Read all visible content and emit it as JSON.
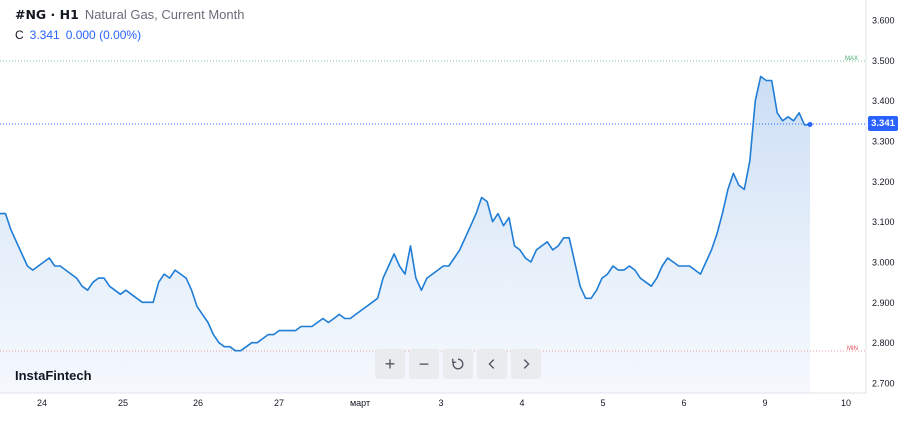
{
  "legend": {
    "symbol": "#NG · H1",
    "name": "Natural Gas, Current Month",
    "close_label": "C",
    "close_value": "3.341",
    "change_text": "0.000 (0.00%)"
  },
  "brand": "InstaFintech",
  "price_tag": "3.341",
  "max_label": "MAX",
  "min_label": "MIN",
  "toolbar": {
    "zoom_in": "+",
    "zoom_out": "−"
  },
  "colors": {
    "line": "#1f7dd6",
    "area_top": "#c8dcf4",
    "last_price": "#2962ff",
    "max_line": "#3fa86a",
    "min_line": "#e0505a"
  },
  "chart_data": {
    "type": "area",
    "title": "Natural Gas, Current Month",
    "xlabel": "",
    "ylabel": "",
    "ylim": [
      2.7,
      3.6
    ],
    "y_ticks": [
      "3.600",
      "3.500",
      "3.400",
      "3.300",
      "3.200",
      "3.100",
      "3.000",
      "2.900",
      "2.800",
      "2.700"
    ],
    "x_ticks": [
      "24",
      "25",
      "26",
      "27",
      "март",
      "3",
      "4",
      "5",
      "6",
      "9",
      "10"
    ],
    "grid": false,
    "last_value": 3.341,
    "max_value": 3.496,
    "min_value": 2.777,
    "series": [
      {
        "values": [
          3.12,
          3.12,
          3.08,
          3.05,
          3.02,
          2.99,
          2.98,
          2.99,
          3.0,
          3.01,
          2.99,
          2.99,
          2.98,
          2.97,
          2.96,
          2.94,
          2.93,
          2.95,
          2.96,
          2.96,
          2.94,
          2.93,
          2.92,
          2.93,
          2.92,
          2.91,
          2.9,
          2.9,
          2.9,
          2.95,
          2.97,
          2.96,
          2.98,
          2.97,
          2.96,
          2.93,
          2.89,
          2.87,
          2.85,
          2.82,
          2.8,
          2.79,
          2.79,
          2.78,
          2.78,
          2.79,
          2.8,
          2.8,
          2.81,
          2.82,
          2.82,
          2.83,
          2.83,
          2.83,
          2.83,
          2.84,
          2.84,
          2.84,
          2.85,
          2.86,
          2.85,
          2.86,
          2.87,
          2.86,
          2.86,
          2.87,
          2.88,
          2.89,
          2.9,
          2.91,
          2.96,
          2.99,
          3.02,
          2.99,
          2.97,
          3.04,
          2.96,
          2.93,
          2.96,
          2.97,
          2.98,
          2.99,
          2.99,
          3.01,
          3.03,
          3.06,
          3.09,
          3.12,
          3.16,
          3.15,
          3.1,
          3.12,
          3.09,
          3.11,
          3.04,
          3.03,
          3.01,
          3.0,
          3.03,
          3.04,
          3.05,
          3.03,
          3.04,
          3.06,
          3.06,
          3.0,
          2.94,
          2.91,
          2.91,
          2.93,
          2.96,
          2.97,
          2.99,
          2.98,
          2.98,
          2.99,
          2.98,
          2.96,
          2.95,
          2.94,
          2.96,
          2.99,
          3.01,
          3.0,
          2.99,
          2.99,
          2.99,
          2.98,
          2.97,
          3.0,
          3.03,
          3.07,
          3.12,
          3.18,
          3.22,
          3.19,
          3.18,
          3.25,
          3.4,
          3.46,
          3.45,
          3.45,
          3.37,
          3.35,
          3.36,
          3.35,
          3.37,
          3.34,
          3.341
        ],
        "start_label": "24",
        "end_label": "9"
      }
    ]
  }
}
